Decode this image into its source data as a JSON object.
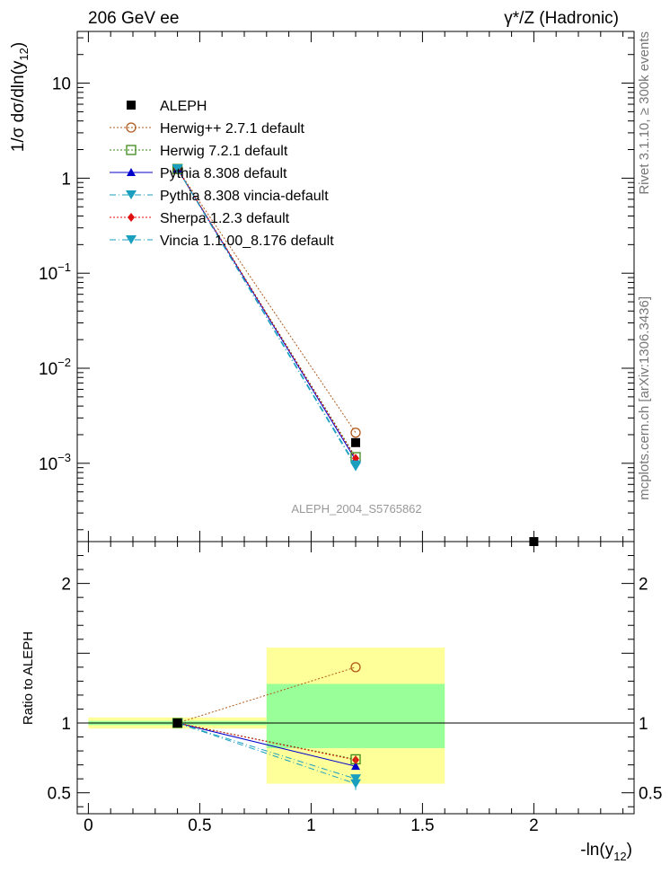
{
  "header": {
    "left": "206 GeV ee",
    "right": "γ*/Z (Hadronic)"
  },
  "side_labels": {
    "rivet": "Rivet 3.1.10, ≥ 300k events",
    "mcplots": "mcplots.cern.ch [arXiv:1306.3436]"
  },
  "analysis_id": "ALEPH_2004_S5765862",
  "chart_data": [
    {
      "panel": "main",
      "type": "scatter",
      "ylabel": "1/σ dσ/dln(y12)",
      "yscale": "log",
      "ylim": [
        0.00015,
        35
      ],
      "xlim": [
        -0.05,
        2.45
      ],
      "yticks": [
        {
          "value": 10,
          "label": "10"
        },
        {
          "value": 1,
          "label": "1"
        },
        {
          "value": 0.1,
          "label": "10",
          "exp": "−1"
        },
        {
          "value": 0.01,
          "label": "10",
          "exp": "−2"
        },
        {
          "value": 0.001,
          "label": "10",
          "exp": "−3"
        }
      ],
      "legend_position": "top-left",
      "series": [
        {
          "name": "ALEPH",
          "marker": "square-filled",
          "color": "#000000",
          "line": "none",
          "points": [
            {
              "x": 0.4,
              "y": 1.25
            },
            {
              "x": 1.2,
              "y": 0.00165
            },
            {
              "x": 2.0,
              "y": 0.00015
            }
          ]
        },
        {
          "name": "Herwig++ 2.7.1 default",
          "marker": "circle-open",
          "color": "#b05a1a",
          "line": "dotted",
          "points": [
            {
              "x": 0.4,
              "y": 1.25
            },
            {
              "x": 1.2,
              "y": 0.0021
            }
          ]
        },
        {
          "name": "Herwig 7.2.1 default",
          "marker": "square-open",
          "color": "#3d8a1a",
          "line": "dotted",
          "points": [
            {
              "x": 0.4,
              "y": 1.25
            },
            {
              "x": 1.2,
              "y": 0.00116
            }
          ]
        },
        {
          "name": "Pythia 8.308 default",
          "marker": "triangle-up",
          "color": "#0000cc",
          "line": "solid",
          "points": [
            {
              "x": 0.4,
              "y": 1.25
            },
            {
              "x": 1.2,
              "y": 0.00108
            }
          ]
        },
        {
          "name": "Pythia 8.308 vincia-default",
          "marker": "triangle-down",
          "color": "#1a9fbf",
          "line": "dashdot",
          "points": [
            {
              "x": 0.4,
              "y": 1.25
            },
            {
              "x": 1.2,
              "y": 0.00092
            }
          ]
        },
        {
          "name": "Sherpa 1.2.3 default",
          "marker": "diamond",
          "color": "#e01010",
          "line": "dotted",
          "points": [
            {
              "x": 0.4,
              "y": 1.25
            },
            {
              "x": 1.2,
              "y": 0.00113
            }
          ]
        },
        {
          "name": "Vincia 1.1.00_8.176 default",
          "marker": "triangle-down",
          "color": "#1a9fbf",
          "line": "dashdot",
          "points": [
            {
              "x": 0.4,
              "y": 1.25
            },
            {
              "x": 1.2,
              "y": 0.00096
            }
          ]
        }
      ]
    },
    {
      "panel": "ratio",
      "type": "scatter",
      "ylabel": "Ratio to ALEPH",
      "xlabel": "-ln(y12)",
      "ylim": [
        0.35,
        2.3
      ],
      "xlim": [
        -0.05,
        2.45
      ],
      "yticks": [
        {
          "value": 2,
          "label": "2"
        },
        {
          "value": 1,
          "label": "1"
        },
        {
          "value": 0.5,
          "label": "0.5"
        }
      ],
      "xticks": [
        {
          "value": 0,
          "label": "0"
        },
        {
          "value": 0.5,
          "label": "0.5"
        },
        {
          "value": 1,
          "label": "1"
        },
        {
          "value": 1.5,
          "label": "1.5"
        },
        {
          "value": 2,
          "label": "2"
        }
      ],
      "bands": [
        {
          "xmin": 0.0,
          "xmax": 0.8,
          "ymin": 0.96,
          "ymax": 1.04,
          "color": "#ffff99"
        },
        {
          "xmin": 0.0,
          "xmax": 0.8,
          "ymin": 0.985,
          "ymax": 1.015,
          "color": "#99ff99"
        },
        {
          "xmin": 0.8,
          "xmax": 1.6,
          "ymin": 0.565,
          "ymax": 1.54,
          "color": "#ffff99"
        },
        {
          "xmin": 0.8,
          "xmax": 1.6,
          "ymin": 0.82,
          "ymax": 1.28,
          "color": "#99ff99"
        }
      ],
      "series": [
        {
          "name": "Herwig++ 2.7.1 default",
          "points": [
            {
              "x": 0.4,
              "y": 1.0
            },
            {
              "x": 1.2,
              "y": 1.4
            }
          ]
        },
        {
          "name": "Herwig 7.2.1 default",
          "points": [
            {
              "x": 0.4,
              "y": 1.0
            },
            {
              "x": 1.2,
              "y": 0.74
            }
          ]
        },
        {
          "name": "Pythia 8.308 default",
          "points": [
            {
              "x": 0.4,
              "y": 1.0
            },
            {
              "x": 1.2,
              "y": 0.69
            }
          ]
        },
        {
          "name": "Pythia 8.308 vincia-default",
          "points": [
            {
              "x": 0.4,
              "y": 1.0
            },
            {
              "x": 1.2,
              "y": 0.565
            }
          ]
        },
        {
          "name": "Sherpa 1.2.3 default",
          "points": [
            {
              "x": 0.4,
              "y": 1.0
            },
            {
              "x": 1.2,
              "y": 0.735
            }
          ]
        },
        {
          "name": "Vincia 1.1.00_8.176 default",
          "points": [
            {
              "x": 0.4,
              "y": 1.0
            },
            {
              "x": 1.2,
              "y": 0.6
            }
          ]
        }
      ]
    }
  ]
}
